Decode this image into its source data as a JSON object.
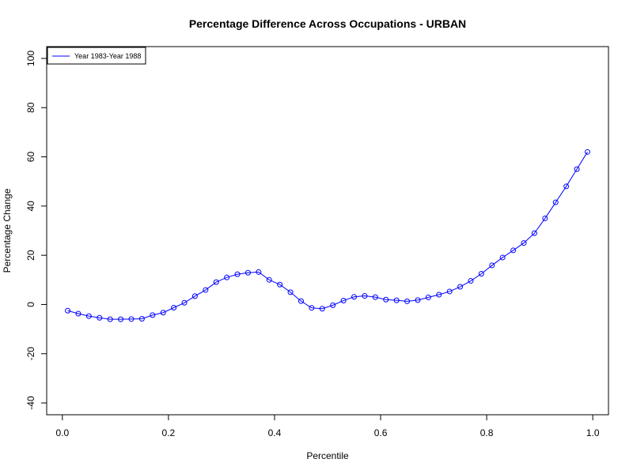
{
  "chart_data": {
    "type": "line",
    "title": "Percentage Difference Across Occupations - URBAN",
    "xlabel": "Percentile",
    "ylabel": "Percentage Change",
    "xlim": [
      0,
      1
    ],
    "ylim": [
      -40,
      100
    ],
    "x_ticks": [
      "0.0",
      "0.2",
      "0.4",
      "0.6",
      "0.8",
      "1.0"
    ],
    "y_ticks": [
      "-40",
      "-20",
      "0",
      "20",
      "40",
      "60",
      "80",
      "100"
    ],
    "grid": false,
    "legend_position": "top-left",
    "series": [
      {
        "name": "Year 1983-Year 1988",
        "color": "#0000ff",
        "marker": "open-circle",
        "x": [
          0.01,
          0.03,
          0.05,
          0.07,
          0.09,
          0.11,
          0.13,
          0.15,
          0.17,
          0.19,
          0.21,
          0.23,
          0.25,
          0.27,
          0.29,
          0.31,
          0.33,
          0.35,
          0.37,
          0.39,
          0.41,
          0.43,
          0.45,
          0.47,
          0.49,
          0.51,
          0.53,
          0.55,
          0.57,
          0.59,
          0.61,
          0.63,
          0.65,
          0.67,
          0.69,
          0.71,
          0.73,
          0.75,
          0.77,
          0.79,
          0.81,
          0.83,
          0.85,
          0.87,
          0.89,
          0.91,
          0.93,
          0.95,
          0.97,
          0.99
        ],
        "values": [
          -2.5,
          -3.7,
          -4.7,
          -5.4,
          -6.0,
          -6.0,
          -5.9,
          -5.8,
          -4.3,
          -3.3,
          -1.3,
          0.7,
          3.4,
          5.9,
          9.1,
          11.0,
          12.3,
          12.9,
          13.2,
          10.0,
          8.1,
          5.0,
          1.4,
          -1.4,
          -1.7,
          -0.3,
          1.6,
          3.1,
          3.5,
          3.0,
          2.0,
          1.7,
          1.3,
          1.8,
          2.9,
          4.0,
          5.3,
          7.2,
          9.6,
          12.5,
          15.9,
          19.1,
          22.0,
          25.0,
          29.0,
          35.0,
          41.5,
          48.0,
          55.0,
          62.0
        ]
      }
    ]
  }
}
